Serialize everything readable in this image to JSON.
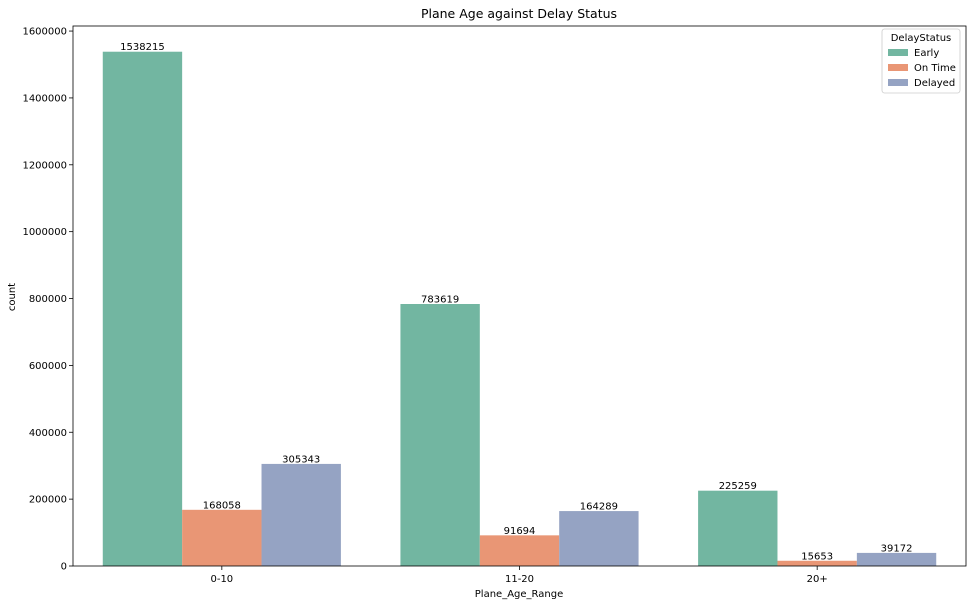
{
  "chart_data": {
    "type": "bar",
    "title": "Plane Age against Delay Status",
    "xlabel": "Plane_Age_Range",
    "ylabel": "count",
    "categories": [
      "0-10",
      "11-20",
      "20+"
    ],
    "series": [
      {
        "name": "Early",
        "color": "#72b6a1",
        "values": [
          1538215,
          783619,
          225259
        ]
      },
      {
        "name": "On Time",
        "color": "#e99675",
        "values": [
          168058,
          91694,
          15653
        ]
      },
      {
        "name": "Delayed",
        "color": "#95a3c3",
        "values": [
          305343,
          164289,
          39172
        ]
      }
    ],
    "data_labels": [
      "1538215",
      "783619",
      "225259",
      "168058",
      "91694",
      "15653",
      "305343",
      "164289",
      "39172"
    ],
    "ylim": [
      0,
      1615126
    ],
    "yticks": [
      0,
      200000,
      400000,
      600000,
      800000,
      1000000,
      1200000,
      1400000,
      1600000
    ],
    "ytick_labels": [
      "0",
      "200000",
      "400000",
      "600000",
      "800000",
      "1000000",
      "1200000",
      "1400000",
      "1600000"
    ],
    "legend": {
      "title": "DelayStatus",
      "placement": "top-right"
    },
    "grid": false
  }
}
